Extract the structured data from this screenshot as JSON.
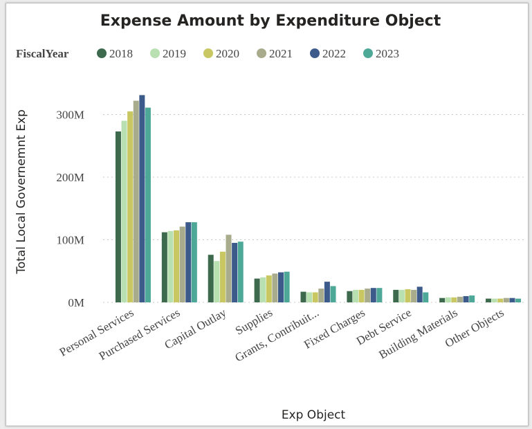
{
  "chart_data": {
    "type": "bar",
    "title": "Expense Amount by Expenditure Object",
    "legend_title": "FiscalYear",
    "legend_position": "top-left",
    "xlabel": "Exp Object",
    "ylabel": "Total Local Governemnt Exp",
    "ylim": [
      0,
      340000000
    ],
    "yticks": [
      {
        "value": 0,
        "label": "0M"
      },
      {
        "value": 100000000,
        "label": "100M"
      },
      {
        "value": 200000000,
        "label": "200M"
      },
      {
        "value": 300000000,
        "label": "300M"
      }
    ],
    "grid": true,
    "categories": [
      "Personal Services",
      "Purchased Services",
      "Capital Outlay",
      "Supplies",
      "Grants, Contribuit...",
      "Fixed Charges",
      "Debt Service",
      "Building Materials",
      "Other Objects"
    ],
    "series": [
      {
        "name": "2018",
        "color": "#3d6a4c",
        "values": [
          273000000,
          112000000,
          76000000,
          38000000,
          17000000,
          18000000,
          20000000,
          7000000,
          6000000
        ]
      },
      {
        "name": "2019",
        "color": "#b8e0b0",
        "values": [
          290000000,
          114000000,
          66000000,
          40000000,
          16000000,
          20000000,
          20000000,
          8000000,
          6000000
        ]
      },
      {
        "name": "2020",
        "color": "#c8c762",
        "values": [
          305000000,
          115000000,
          81000000,
          43000000,
          16000000,
          20000000,
          21000000,
          8000000,
          6000000
        ]
      },
      {
        "name": "2021",
        "color": "#a8ab8c",
        "values": [
          322000000,
          121000000,
          108000000,
          46000000,
          22000000,
          22000000,
          20000000,
          9000000,
          7000000
        ]
      },
      {
        "name": "2022",
        "color": "#3c5a8a",
        "values": [
          331000000,
          128000000,
          95000000,
          48000000,
          33000000,
          23000000,
          25000000,
          10000000,
          7000000
        ]
      },
      {
        "name": "2023",
        "color": "#4ea898",
        "values": [
          311000000,
          128000000,
          97000000,
          49000000,
          26000000,
          23000000,
          16000000,
          11000000,
          6000000
        ]
      }
    ]
  }
}
